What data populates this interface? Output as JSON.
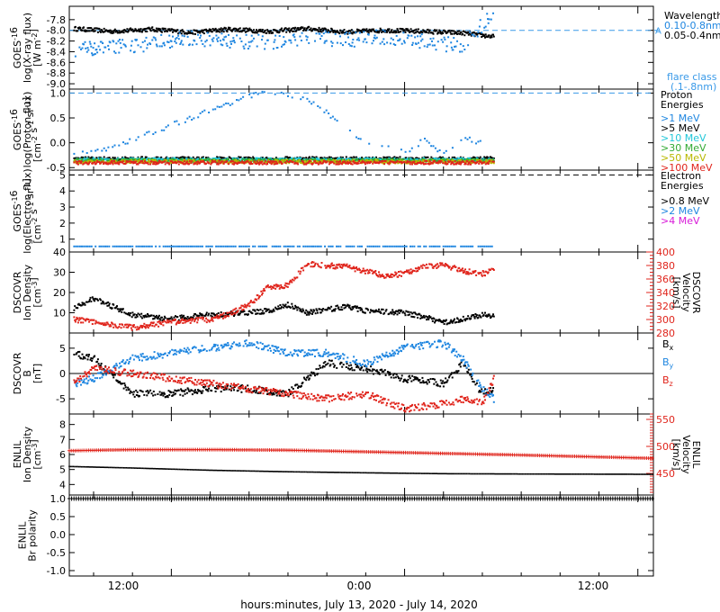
{
  "colors": {
    "black": "#000000",
    "blue": "#1f86e0",
    "cyan": "#21c7d9",
    "green": "#33aa33",
    "yellow": "#b8b800",
    "orange": "#f07020",
    "red": "#e0251c",
    "magenta": "#d81ad8",
    "lightblue": "#3a9ae8"
  },
  "xaxis": {
    "label": "hours:minutes, July 13, 2020 - July 14, 2020",
    "ticks": [
      "12:00",
      "0:00",
      "12:00"
    ],
    "range_hours": [
      6.75,
      36.8
    ],
    "tick_hours": [
      12,
      24,
      36
    ],
    "data_end_hour": 28.7
  },
  "chart_data": [
    {
      "type": "scatter",
      "id": "xray",
      "ylabel": [
        "GOES-16",
        "log(X-ray flux)",
        "[W m-2]"
      ],
      "ylim": [
        -9.1,
        -7.55
      ],
      "yticks": [
        -9.0,
        -8.8,
        -8.6,
        -8.4,
        -8.2,
        -8.0,
        -7.8
      ],
      "ytick_labels": [
        "-9.0",
        "-8.8",
        "-8.6",
        "-8.4",
        "-8.2",
        "-8.0",
        "-7.8"
      ],
      "legend_title": "Wavelength",
      "series": [
        {
          "name": "0.10-0.8nm",
          "color": "black",
          "x": [
            7,
            9,
            11,
            13,
            15,
            17,
            19,
            21,
            23,
            25,
            27,
            28.6
          ],
          "y": [
            -7.97,
            -8.02,
            -7.98,
            -8.04,
            -7.98,
            -8.02,
            -7.97,
            -8.03,
            -8.0,
            -8.02,
            -8.05,
            -8.12
          ]
        },
        {
          "name": "0.05-0.4nm",
          "color": "blue",
          "x": [
            7,
            9,
            11,
            13,
            15,
            17,
            19,
            21,
            23,
            25,
            27,
            28.6
          ],
          "y": [
            -8.35,
            -8.3,
            -8.25,
            -8.15,
            -8.2,
            -8.22,
            -8.15,
            -8.18,
            -8.12,
            -8.2,
            -8.3,
            -7.65
          ]
        }
      ],
      "flare_class_label": "flare class",
      "flare_class_range": "(.1-.8nm)",
      "flare_threshold": "A",
      "flare_threshold_y": -8.0
    },
    {
      "type": "scatter",
      "id": "proton",
      "ylabel": [
        "GOES-16",
        "log(Proton flux)",
        "[cm-2 s-1 sr-1]"
      ],
      "ylim": [
        -0.55,
        1.08
      ],
      "yticks": [
        -0.5,
        0.0,
        0.5,
        1.0
      ],
      "ytick_labels": [
        "-0.5",
        "0.0",
        "0.5",
        "1.0"
      ],
      "threshold_y": 1.0,
      "legend_title": "Proton Energies",
      "series": [
        {
          "name": ">1 MeV",
          "color": "blue",
          "x": [
            7,
            9,
            11,
            13,
            15,
            16,
            17,
            18,
            19,
            20,
            21,
            22,
            24,
            25,
            26,
            27,
            28
          ],
          "y": [
            -0.2,
            -0.1,
            0.2,
            0.5,
            0.8,
            0.95,
            1.02,
            0.98,
            0.85,
            0.6,
            0.3,
            0.0,
            -0.2,
            0.05,
            -0.2,
            0.1,
            0.0
          ]
        },
        {
          "name": ">5 MeV",
          "color": "black",
          "x": [
            7,
            28.6
          ],
          "y": [
            -0.32,
            -0.32
          ]
        },
        {
          "name": ">10 MeV",
          "color": "cyan",
          "x": [
            7,
            28.6
          ],
          "y": [
            -0.34,
            -0.34
          ]
        },
        {
          "name": ">30 MeV",
          "color": "green",
          "x": [
            7,
            28.6
          ],
          "y": [
            -0.36,
            -0.36
          ]
        },
        {
          "name": ">50 MeV",
          "color": "yellow",
          "x": [
            7,
            28.6
          ],
          "y": [
            -0.38,
            -0.38
          ]
        },
        {
          "name": ">100 MeV",
          "color": "red",
          "x": [
            7,
            28.6
          ],
          "y": [
            -0.4,
            -0.4
          ]
        }
      ]
    },
    {
      "type": "scatter",
      "id": "electron",
      "ylabel": [
        "GOES-16",
        "log(Electron flux)",
        "[cm-2 s-1 sr-1]"
      ],
      "ylim": [
        0.2,
        5.3
      ],
      "yticks": [
        1,
        2,
        3,
        4,
        5
      ],
      "ytick_labels": [
        "1",
        "2",
        "3",
        "4",
        "5"
      ],
      "threshold_y": 5.0,
      "legend_title": "Electron Energies",
      "series": [
        {
          "name": ">0.8 MeV",
          "color": "black",
          "x": [],
          "y": []
        },
        {
          "name": ">2 MeV",
          "color": "blue",
          "x": [
            7,
            28.6
          ],
          "y": [
            0.55,
            0.55
          ]
        },
        {
          "name": ">4 MeV",
          "color": "magenta",
          "x": [],
          "y": []
        }
      ]
    },
    {
      "type": "scatter",
      "id": "dscovr_density",
      "ylabel": [
        "DSCOVR",
        "Ion Density",
        "[cm-3]"
      ],
      "ylim": [
        0,
        40
      ],
      "yticks": [
        10,
        20,
        30,
        40
      ],
      "ytick_labels": [
        "10",
        "20",
        "30",
        "40"
      ],
      "y2label": [
        "DSCOVR",
        "Velocity",
        "[km/s]"
      ],
      "y2lim": [
        280,
        400
      ],
      "y2ticks": [
        280,
        300,
        320,
        340,
        360,
        380,
        400
      ],
      "y2tick_labels": [
        "280",
        "300",
        "320",
        "340",
        "360",
        "380",
        "400"
      ],
      "series": [
        {
          "name": "density",
          "color": "black",
          "x": [
            7,
            8,
            10,
            12,
            14,
            16,
            17,
            18,
            19,
            21,
            22,
            24,
            25,
            26,
            27,
            28,
            28.6
          ],
          "y": [
            12,
            17,
            9,
            7,
            9,
            10,
            11,
            14,
            10,
            13,
            11,
            10,
            8,
            5,
            7,
            9,
            8
          ]
        },
        {
          "name": "velocity",
          "color": "red",
          "axis": "y2",
          "x": [
            7,
            8,
            9,
            10,
            12,
            14,
            15,
            16,
            17,
            18,
            19,
            20,
            21,
            22,
            23,
            24,
            25,
            26,
            27,
            28,
            28.6
          ],
          "y": [
            300,
            296,
            292,
            288,
            296,
            300,
            308,
            322,
            348,
            350,
            382,
            380,
            378,
            372,
            365,
            368,
            378,
            380,
            372,
            368,
            372
          ]
        }
      ]
    },
    {
      "type": "scatter",
      "id": "dscovr_b",
      "ylabel": [
        "DSCOVR",
        "B",
        "[nT]"
      ],
      "ylim": [
        -8,
        8
      ],
      "yticks": [
        -5,
        0,
        5
      ],
      "ytick_labels": [
        "-5",
        "0",
        "5"
      ],
      "zero_line": true,
      "series": [
        {
          "name": "Bx",
          "color": "black",
          "x": [
            7,
            8,
            10,
            12,
            14,
            16,
            18,
            20,
            22,
            24,
            26,
            27,
            28,
            28.6
          ],
          "y": [
            4,
            3,
            -4,
            -4,
            -3,
            -3,
            -4,
            2,
            1,
            -1,
            -2,
            2,
            -4,
            -3
          ]
        },
        {
          "name": "By",
          "color": "blue",
          "x": [
            7,
            8,
            10,
            12,
            14,
            16,
            18,
            20,
            22,
            24,
            26,
            27,
            28,
            28.6
          ],
          "y": [
            -2,
            -1,
            3,
            4,
            5,
            6,
            4,
            4,
            2,
            5,
            6,
            3,
            -3,
            -5
          ]
        },
        {
          "name": "Bz",
          "color": "red",
          "x": [
            7,
            8,
            10,
            12,
            14,
            16,
            18,
            20,
            22,
            24,
            26,
            27,
            28,
            28.6
          ],
          "y": [
            -2,
            1,
            0,
            -1,
            -2,
            -3,
            -4,
            -5,
            -4,
            -7,
            -6,
            -5,
            -6,
            -1
          ]
        }
      ]
    },
    {
      "type": "scatter",
      "id": "enlil_density",
      "ylabel": [
        "ENLIL",
        "Ion Density",
        "[cm-3]"
      ],
      "ylim": [
        3.3,
        8.7
      ],
      "yticks": [
        4,
        5,
        6,
        7,
        8
      ],
      "ytick_labels": [
        "4",
        "5",
        "6",
        "7",
        "8"
      ],
      "y2label": [
        "ENLIL",
        "Velocity",
        "[km/s]"
      ],
      "y2lim": [
        410,
        560
      ],
      "y2ticks": [
        450,
        500,
        550
      ],
      "y2tick_labels": [
        "450",
        "500",
        "550"
      ],
      "series": [
        {
          "name": "density",
          "color": "black",
          "x": [
            6.75,
            10,
            14,
            18,
            22,
            26,
            30,
            36.8
          ],
          "y": [
            5.2,
            5.1,
            4.95,
            4.85,
            4.78,
            4.72,
            4.7,
            4.68
          ]
        },
        {
          "name": "velocity",
          "color": "red",
          "axis": "y2",
          "x": [
            6.75,
            10,
            14,
            18,
            22,
            26,
            30,
            36.8
          ],
          "y": [
            492,
            494,
            494,
            493,
            490,
            487,
            484,
            478
          ]
        }
      ]
    },
    {
      "type": "scatter",
      "id": "enlil_polarity",
      "ylabel": [
        "ENLIL",
        "Br polarity"
      ],
      "ylim": [
        -1.15,
        1.1
      ],
      "yticks": [
        -1.0,
        -0.5,
        0.0,
        0.5,
        1.0
      ],
      "ytick_labels": [
        "-1.0",
        "-0.5",
        "0.0",
        "0.5",
        "1.0"
      ],
      "series": [
        {
          "name": "polarity",
          "color": "black",
          "x": [
            6.75,
            36.8
          ],
          "y": [
            1.0,
            1.0
          ]
        }
      ]
    }
  ]
}
